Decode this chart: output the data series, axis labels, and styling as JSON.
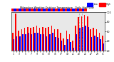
{
  "title": "Milwaukee Weather Outdoor Temperature   Daily High/Low",
  "background_color": "#ffffff",
  "plot_bg_color": "#e8e8e8",
  "high_color": "#ff0000",
  "low_color": "#0000ff",
  "legend_high": "High",
  "legend_low": "Low",
  "ylim": [
    20,
    100
  ],
  "yticks": [
    20,
    40,
    60,
    80,
    100
  ],
  "ytick_labels": [
    "20",
    "40",
    "60",
    "80",
    "100"
  ],
  "days": [
    1,
    2,
    3,
    4,
    5,
    6,
    7,
    8,
    9,
    10,
    11,
    12,
    13,
    14,
    15,
    16,
    17,
    18,
    19,
    20,
    21,
    22,
    23,
    24,
    25,
    26,
    27,
    28,
    29,
    30,
    31
  ],
  "highs": [
    58,
    98,
    62,
    65,
    68,
    70,
    68,
    70,
    72,
    68,
    70,
    68,
    70,
    72,
    65,
    65,
    58,
    45,
    62,
    55,
    42,
    72,
    90,
    92,
    95,
    92,
    65,
    68,
    65,
    58,
    52
  ],
  "lows": [
    44,
    50,
    50,
    54,
    55,
    57,
    55,
    57,
    57,
    54,
    54,
    50,
    54,
    57,
    49,
    47,
    41,
    33,
    44,
    39,
    26,
    54,
    68,
    70,
    73,
    70,
    49,
    51,
    49,
    44,
    36
  ],
  "tick_labels": [
    "1",
    "2",
    "3",
    "4",
    "5",
    "6",
    "7",
    "8",
    "9",
    "10",
    "11",
    "12",
    "13",
    "14",
    "15",
    "16",
    "17",
    "18",
    "19",
    "20",
    "21",
    "22",
    "23",
    "24",
    "25",
    "26",
    "27",
    "28",
    "29",
    "30",
    "31"
  ],
  "bar_width": 0.38,
  "dotted_col": [
    22,
    23
  ]
}
